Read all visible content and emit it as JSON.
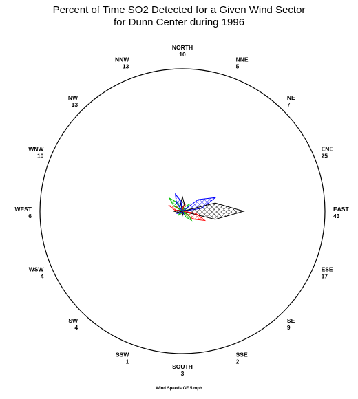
{
  "chart_data": {
    "type": "polar",
    "title": "Percent of Time SO2 Detected for a Given Wind Sector",
    "subtitle": "for Dunn Center during 1996",
    "footnote": "Wind Speeds GE 5 mph",
    "sectors": [
      {
        "label": "NORTH",
        "value": 10
      },
      {
        "label": "NNE",
        "value": 5
      },
      {
        "label": "NE",
        "value": 7
      },
      {
        "label": "ENE",
        "value": 25
      },
      {
        "label": "EAST",
        "value": 43
      },
      {
        "label": "ESE",
        "value": 17
      },
      {
        "label": "SE",
        "value": 9
      },
      {
        "label": "SSE",
        "value": 2
      },
      {
        "label": "SOUTH",
        "value": 3
      },
      {
        "label": "SSW",
        "value": 1
      },
      {
        "label": "SW",
        "value": 4
      },
      {
        "label": "WSW",
        "value": 4
      },
      {
        "label": "WEST",
        "value": 6
      },
      {
        "label": "WNW",
        "value": 10
      },
      {
        "label": "NW",
        "value": 13
      },
      {
        "label": "NNW",
        "value": 13
      }
    ],
    "colors": [
      "#000000",
      "#ff0000",
      "#00c000",
      "#0000ff"
    ],
    "rlim": [
      0,
      100
    ]
  }
}
